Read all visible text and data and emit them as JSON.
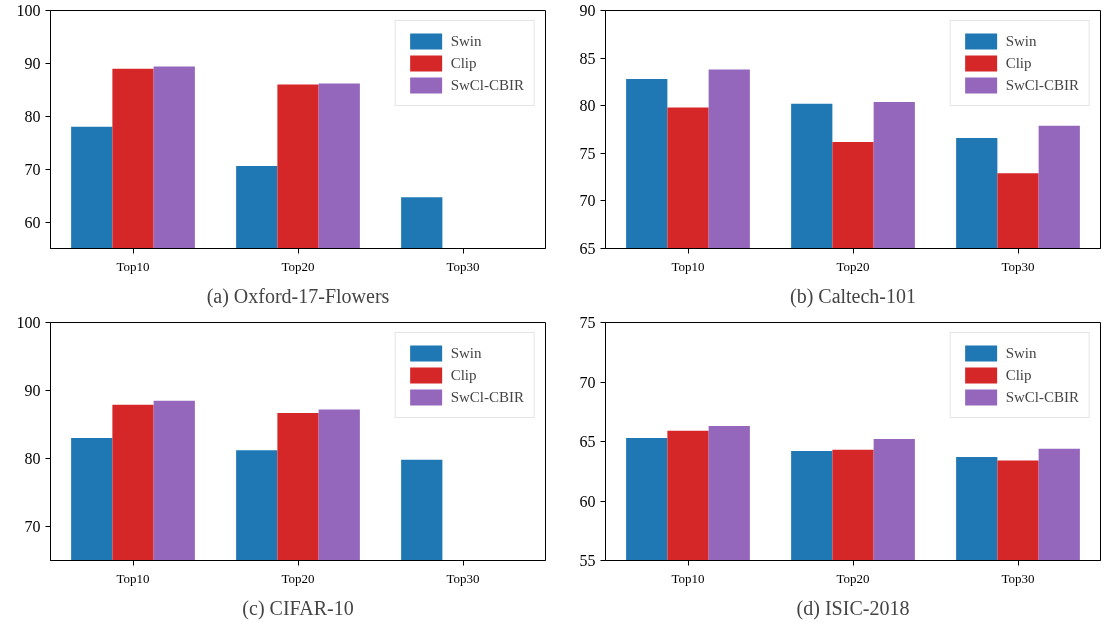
{
  "chart_data": [
    {
      "type": "bar",
      "title": "(a) Oxford-17-Flowers",
      "categories": [
        "Top10",
        "Top20",
        "Top30"
      ],
      "ylim": [
        55,
        100
      ],
      "yticks": [
        60,
        70,
        80,
        90,
        100
      ],
      "legend": "top right",
      "grid": false,
      "series": [
        {
          "name": "Swin",
          "color": "#1f77b4",
          "values": [
            78.0,
            70.6,
            64.7
          ]
        },
        {
          "name": "Clip",
          "color": "#d62728",
          "values": [
            89.0,
            86.0,
            null
          ]
        },
        {
          "name": "SwCl-CBIR",
          "color": "#9467bd",
          "values": [
            89.4,
            86.2,
            null
          ]
        }
      ]
    },
    {
      "type": "bar",
      "title": "(b) Caltech-101",
      "categories": [
        "Top10",
        "Top20",
        "Top30"
      ],
      "ylim": [
        65,
        90
      ],
      "yticks": [
        65,
        70,
        75,
        80,
        85,
        90
      ],
      "legend": "top right",
      "grid": false,
      "series": [
        {
          "name": "Swin",
          "color": "#1f77b4",
          "values": [
            82.8,
            80.2,
            76.6
          ]
        },
        {
          "name": "Clip",
          "color": "#d62728",
          "values": [
            79.8,
            76.2,
            72.9
          ]
        },
        {
          "name": "SwCl-CBIR",
          "color": "#9467bd",
          "values": [
            83.8,
            80.4,
            77.9
          ]
        }
      ]
    },
    {
      "type": "bar",
      "title": "(c) CIFAR-10",
      "categories": [
        "Top10",
        "Top20",
        "Top30"
      ],
      "ylim": [
        65,
        100
      ],
      "yticks": [
        70,
        80,
        90,
        100
      ],
      "legend": "top right",
      "grid": false,
      "series": [
        {
          "name": "Swin",
          "color": "#1f77b4",
          "values": [
            83.0,
            81.2,
            79.8
          ]
        },
        {
          "name": "Clip",
          "color": "#d62728",
          "values": [
            87.9,
            86.7,
            null
          ]
        },
        {
          "name": "SwCl-CBIR",
          "color": "#9467bd",
          "values": [
            88.5,
            87.2,
            null
          ]
        }
      ]
    },
    {
      "type": "bar",
      "title": "(d) ISIC-2018",
      "categories": [
        "Top10",
        "Top20",
        "Top30"
      ],
      "ylim": [
        55,
        75
      ],
      "yticks": [
        55,
        60,
        65,
        70,
        75
      ],
      "legend": "top right",
      "grid": false,
      "series": [
        {
          "name": "Swin",
          "color": "#1f77b4",
          "values": [
            65.3,
            64.2,
            63.7
          ]
        },
        {
          "name": "Clip",
          "color": "#d62728",
          "values": [
            65.9,
            64.3,
            63.4
          ]
        },
        {
          "name": "SwCl-CBIR",
          "color": "#9467bd",
          "values": [
            66.3,
            65.2,
            64.4
          ]
        }
      ]
    }
  ]
}
